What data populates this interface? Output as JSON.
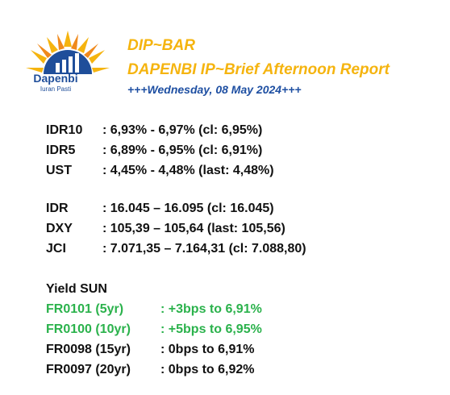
{
  "logo": {
    "brand": "Dapenbi",
    "tagline": "Iuran Pasti"
  },
  "header": {
    "title": "DIP~BAR",
    "subtitle": "DAPENBI IP~Brief Afternoon Report",
    "date": "+++Wednesday, 08 May 2024+++"
  },
  "yields": [
    {
      "label": "IDR10",
      "value": ": 6,93% - 6,97% (cl: 6,95%)"
    },
    {
      "label": "IDR5",
      "value": ": 6,89% - 6,95% (cl: 6,91%)"
    },
    {
      "label": "UST",
      "value": ": 4,45% - 4,48% (last: 4,48%)"
    }
  ],
  "markets": [
    {
      "label": "IDR",
      "value": ": 16.045 – 16.095 (cl: 16.045)"
    },
    {
      "label": "DXY",
      "value": ": 105,39 – 105,64 (last: 105,56)"
    },
    {
      "label": "JCI",
      "value": ": 7.071,35 – 7.164,31 (cl: 7.088,80)"
    }
  ],
  "yield_sun": {
    "heading": "Yield SUN",
    "colors": {
      "up": "#2bb24c",
      "flat": "#111111"
    },
    "items": [
      {
        "label": "FR0101 (5yr)",
        "value": ": +3bps to 6,91%"
      },
      {
        "label": "FR0100 (10yr)",
        "value": ": +5bps to 6,95%"
      },
      {
        "label": "FR0098 (15yr)",
        "value": ": 0bps to 6,91%"
      },
      {
        "label": "FR0097 (20yr)",
        "value": ": 0bps to 6,92%"
      }
    ]
  }
}
